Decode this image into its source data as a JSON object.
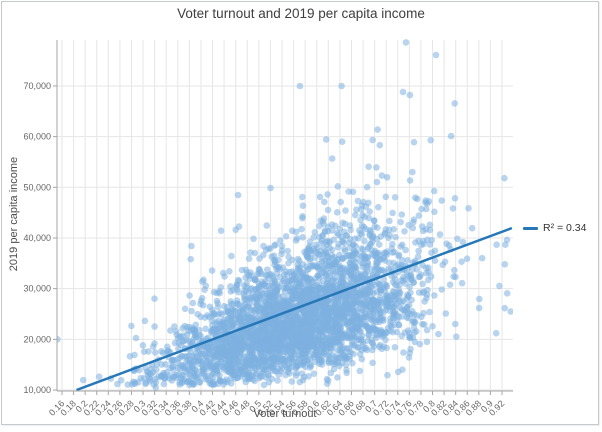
{
  "chart_data": {
    "type": "scatter",
    "title": "Voter turnout and 2019 per capita income",
    "xlabel": "Voter turnout",
    "ylabel": "2019 per capita income",
    "xlim": [
      0.151,
      0.939
    ],
    "ylim": [
      10000,
      79000
    ],
    "grid": true,
    "x_ticks": [
      0.16,
      0.18,
      0.2,
      0.22,
      0.24,
      0.26,
      0.28,
      0.3,
      0.32,
      0.34,
      0.36,
      0.38,
      0.4,
      0.42,
      0.44,
      0.46,
      0.48,
      0.5,
      0.52,
      0.54,
      0.56,
      0.58,
      0.6,
      0.62,
      0.64,
      0.66,
      0.68,
      0.7,
      0.72,
      0.74,
      0.76,
      0.78,
      0.8,
      0.82,
      0.84,
      0.86,
      0.88,
      0.9,
      0.92
    ],
    "x_tick_labels": [
      "0.16",
      "0.18",
      "0.2",
      "0.22",
      "0.24",
      "0.26",
      "0.28",
      "0.3",
      "0.32",
      "0.34",
      "0.36",
      "0.38",
      "0.4",
      "0.42",
      "0.44",
      "0.46",
      "0.48",
      "0.5",
      "0.52",
      "0.54",
      "0.56",
      "0.58",
      "0.6",
      "0.62",
      "0.64",
      "0.66",
      "0.68",
      "0.7",
      "0.72",
      "0.74",
      "0.76",
      "0.78",
      "0.8",
      "0.82",
      "0.84",
      "0.86",
      "0.88",
      "0.9",
      "0.92"
    ],
    "y_ticks": [
      10000,
      20000,
      30000,
      40000,
      50000,
      60000,
      70000
    ],
    "y_tick_labels": [
      "10,000",
      "20,000",
      "30,000",
      "40,000",
      "50,000",
      "60,000",
      "70,000"
    ],
    "legend": {
      "label": "R² = 0.34",
      "position": "right-middle"
    },
    "trendline": {
      "x1": 0.185,
      "y1": 10000,
      "x2": 0.937,
      "y2": 41950,
      "r_squared": 0.34
    },
    "points_style": {
      "marker_radius": 3.3,
      "count": 3400,
      "seed": 20
    },
    "cloud_model": {
      "x_mean": 0.565,
      "x_sd": 0.108,
      "x_min": 0.175,
      "x_max": 0.93,
      "slope": 42500,
      "intercept": 2140,
      "log_noise_mean": -0.1,
      "log_noise_sd": 0.26,
      "y_floor": 11000,
      "y_ceiling": 76000
    },
    "notable_points": [
      [
        0.152,
        20000
      ],
      [
        0.322,
        10500
      ],
      [
        0.754,
        78600
      ],
      [
        0.806,
        76100
      ],
      [
        0.571,
        70000
      ],
      [
        0.643,
        70000
      ],
      [
        0.749,
        68800
      ],
      [
        0.761,
        68200
      ],
      [
        0.832,
        60100
      ],
      [
        0.644,
        59000
      ],
      [
        0.709,
        58300
      ],
      [
        0.768,
        58900
      ],
      [
        0.935,
        25500
      ],
      [
        0.91,
        21200
      ]
    ],
    "colors": {
      "point": "#7eb1e0",
      "point_opacity": 0.55,
      "trend": "#2778b8",
      "grid": "#e6e6e6",
      "axis": "#a5a5a5",
      "tick_label": "#666666",
      "title": "#3e3e3e",
      "axis_title": "#4d4d4d",
      "legend_text": "#333333",
      "panel_border": "#c6cacd"
    }
  }
}
